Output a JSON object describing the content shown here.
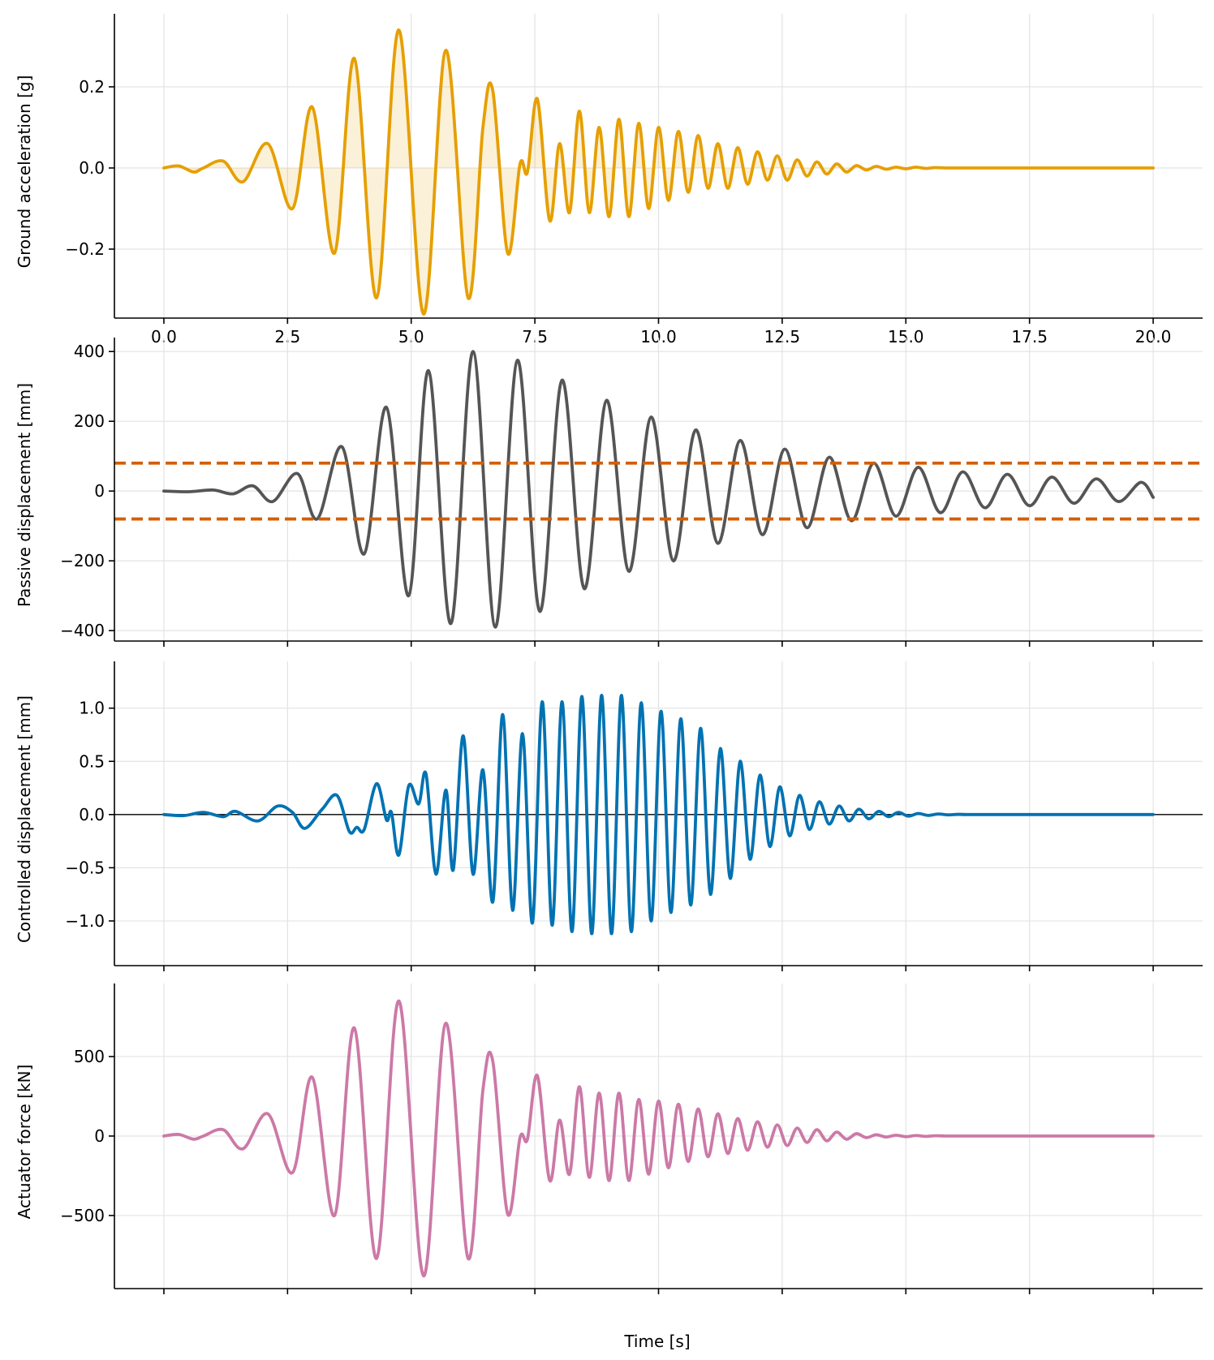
{
  "figure": {
    "xlabel": "Time [s]"
  },
  "chart_data": [
    {
      "type": "line",
      "ylabel": "Ground acceleration [g]",
      "xlim": [
        -1.0,
        21.0
      ],
      "ylim": [
        -0.37,
        0.38
      ],
      "x_ticks": [
        0.0,
        2.5,
        5.0,
        7.5,
        10.0,
        12.5,
        15.0,
        17.5,
        20.0
      ],
      "x_tick_labels": [
        "0.0",
        "2.5",
        "5.0",
        "7.5",
        "10.0",
        "12.5",
        "15.0",
        "17.5",
        "20.0"
      ],
      "y_ticks": [
        -0.2,
        0.0,
        0.2
      ],
      "y_tick_labels": [
        "−0.2",
        "0.0",
        "0.2"
      ],
      "grid": true,
      "fill_to_zero": true,
      "color": "#E69F00",
      "x": [
        0,
        0.3,
        0.6,
        0.8,
        1.2,
        1.6,
        2.1,
        2.6,
        3.0,
        3.45,
        3.85,
        4.3,
        4.75,
        5.25,
        5.7,
        6.15,
        6.45,
        6.65,
        6.95,
        7.2,
        7.35,
        7.55,
        7.8,
        8.0,
        8.2,
        8.4,
        8.6,
        8.8,
        9.0,
        9.2,
        9.4,
        9.6,
        9.8,
        10.0,
        10.2,
        10.4,
        10.6,
        10.8,
        11.0,
        11.2,
        11.4,
        11.6,
        11.8,
        12.0,
        12.2,
        12.4,
        12.6,
        12.8,
        13.0,
        13.2,
        13.4,
        13.6,
        13.8,
        14.0,
        14.2,
        14.4,
        14.6,
        14.8,
        15.0,
        15.2,
        15.4,
        15.6,
        15.8,
        16.0,
        16.2,
        16.4,
        20.0
      ],
      "y": [
        0,
        0.005,
        -0.01,
        0.0,
        0.017,
        -0.034,
        0.06,
        -0.1,
        0.15,
        -0.21,
        0.27,
        -0.32,
        0.34,
        -0.36,
        0.29,
        -0.32,
        0.1,
        0.19,
        -0.21,
        0.01,
        -0.01,
        0.17,
        -0.13,
        0.06,
        -0.11,
        0.14,
        -0.11,
        0.1,
        -0.12,
        0.12,
        -0.12,
        0.11,
        -0.1,
        0.1,
        -0.08,
        0.09,
        -0.06,
        0.08,
        -0.05,
        0.06,
        -0.05,
        0.05,
        -0.04,
        0.04,
        -0.03,
        0.03,
        -0.03,
        0.02,
        -0.02,
        0.015,
        -0.015,
        0.01,
        -0.01,
        0.006,
        -0.005,
        0.004,
        -0.003,
        0.002,
        -0.002,
        0.002,
        -0.001,
        0.001,
        0,
        0,
        0,
        0,
        0
      ]
    },
    {
      "type": "line",
      "ylabel": "Passive displacement [mm]",
      "xlim": [
        -1.0,
        21.0
      ],
      "ylim": [
        -430,
        440
      ],
      "x_ticks": [
        0.0,
        2.5,
        5.0,
        7.5,
        10.0,
        12.5,
        15.0,
        17.5,
        20.0
      ],
      "y_ticks": [
        -400,
        -200,
        0,
        200,
        400
      ],
      "y_tick_labels": [
        "−400",
        "−200",
        "0",
        "200",
        "400"
      ],
      "grid": true,
      "color": "#555555",
      "x": [
        0,
        0.5,
        1.0,
        1.4,
        1.8,
        2.2,
        2.7,
        3.1,
        3.6,
        4.05,
        4.5,
        4.95,
        5.35,
        5.8,
        6.25,
        6.7,
        7.15,
        7.6,
        8.05,
        8.5,
        8.95,
        9.4,
        9.85,
        10.3,
        10.75,
        11.2,
        11.65,
        12.1,
        12.55,
        13.0,
        13.45,
        13.9,
        14.35,
        14.8,
        15.25,
        15.7,
        16.15,
        16.6,
        17.05,
        17.5,
        17.95,
        18.4,
        18.85,
        19.3,
        19.75,
        20.0
      ],
      "y": [
        0,
        -2,
        3,
        -8,
        15,
        -30,
        50,
        -80,
        127,
        -180,
        240,
        -300,
        345,
        -380,
        400,
        -390,
        375,
        -345,
        318,
        -280,
        260,
        -230,
        212,
        -200,
        175,
        -150,
        145,
        -125,
        120,
        -105,
        97,
        -85,
        80,
        -72,
        68,
        -62,
        55,
        -48,
        48,
        -42,
        40,
        -35,
        35,
        -30,
        25,
        -18
      ]
    },
    {
      "type": "line",
      "ylabel": "Controlled displacement [mm]",
      "xlim": [
        -1.0,
        21.0
      ],
      "ylim": [
        -1.42,
        1.44
      ],
      "x_ticks": [
        0.0,
        2.5,
        5.0,
        7.5,
        10.0,
        12.5,
        15.0,
        17.5,
        20.0
      ],
      "y_ticks": [
        -1.0,
        -0.5,
        0.0,
        0.5,
        1.0
      ],
      "y_tick_labels": [
        "−1.0",
        "−0.5",
        "0.0",
        "0.5",
        "1.0"
      ],
      "grid": true,
      "zero_line": true,
      "color": "#0072B2",
      "x": [
        0,
        0.4,
        0.8,
        1.2,
        1.45,
        1.9,
        2.3,
        2.6,
        2.85,
        3.2,
        3.5,
        3.75,
        3.9,
        4.05,
        4.3,
        4.5,
        4.6,
        4.75,
        4.95,
        5.15,
        5.3,
        5.5,
        5.7,
        5.85,
        6.05,
        6.25,
        6.45,
        6.65,
        6.85,
        7.05,
        7.25,
        7.45,
        7.65,
        7.85,
        8.05,
        8.25,
        8.45,
        8.65,
        8.85,
        9.05,
        9.25,
        9.45,
        9.65,
        9.85,
        10.05,
        10.25,
        10.45,
        10.65,
        10.85,
        11.05,
        11.25,
        11.45,
        11.65,
        11.85,
        12.05,
        12.25,
        12.45,
        12.65,
        12.85,
        13.05,
        13.25,
        13.45,
        13.65,
        13.85,
        14.05,
        14.25,
        14.45,
        14.65,
        14.85,
        15.05,
        15.25,
        15.45,
        15.65,
        15.85,
        16.05,
        16.25,
        16.45,
        20.0
      ],
      "y": [
        0,
        -0.01,
        0.02,
        -0.02,
        0.03,
        -0.06,
        0.08,
        0.02,
        -0.13,
        0.05,
        0.18,
        -0.16,
        -0.12,
        -0.14,
        0.29,
        -0.05,
        0.02,
        -0.38,
        0.27,
        0.1,
        0.38,
        -0.56,
        0.23,
        -0.52,
        0.74,
        -0.56,
        0.42,
        -0.82,
        0.94,
        -0.9,
        0.76,
        -1.02,
        1.06,
        -1.04,
        1.06,
        -1.1,
        1.11,
        -1.12,
        1.12,
        -1.12,
        1.12,
        -1.1,
        1.05,
        -1.0,
        0.97,
        -0.92,
        0.9,
        -0.85,
        0.81,
        -0.75,
        0.62,
        -0.6,
        0.5,
        -0.42,
        0.37,
        -0.3,
        0.26,
        -0.2,
        0.18,
        -0.14,
        0.12,
        -0.09,
        0.08,
        -0.06,
        0.05,
        -0.04,
        0.03,
        -0.02,
        0.02,
        -0.015,
        0.01,
        -0.008,
        0.005,
        -0.003,
        0.002,
        0,
        0,
        0
      ]
    },
    {
      "type": "line",
      "ylabel": "Actuator force [kN]",
      "xlim": [
        -1.0,
        21.0
      ],
      "ylim": [
        -960,
        960
      ],
      "x_ticks": [
        0.0,
        2.5,
        5.0,
        7.5,
        10.0,
        12.5,
        15.0,
        17.5,
        20.0
      ],
      "y_ticks": [
        -500,
        0,
        500
      ],
      "y_tick_labels": [
        "−500",
        "0",
        "500"
      ],
      "grid": true,
      "color": "#CC79A7",
      "x": [
        0,
        0.3,
        0.6,
        0.8,
        1.2,
        1.6,
        2.1,
        2.6,
        3.0,
        3.45,
        3.85,
        4.3,
        4.75,
        5.25,
        5.7,
        6.15,
        6.45,
        6.65,
        6.95,
        7.2,
        7.35,
        7.55,
        7.8,
        8.0,
        8.2,
        8.4,
        8.6,
        8.8,
        9.0,
        9.2,
        9.4,
        9.6,
        9.8,
        10.0,
        10.2,
        10.4,
        10.6,
        10.8,
        11.0,
        11.2,
        11.4,
        11.6,
        11.8,
        12.0,
        12.2,
        12.4,
        12.6,
        12.8,
        13.0,
        13.2,
        13.4,
        13.6,
        13.8,
        14.0,
        14.2,
        14.4,
        14.6,
        14.8,
        15.0,
        15.2,
        15.4,
        15.6,
        15.8,
        16.0,
        16.2,
        16.4,
        20.0
      ],
      "y": [
        0,
        10,
        -20,
        0,
        40,
        -80,
        140,
        -230,
        370,
        -500,
        680,
        -770,
        850,
        -880,
        710,
        -770,
        290,
        470,
        -490,
        -10,
        -20,
        380,
        -280,
        100,
        -240,
        310,
        -260,
        270,
        -280,
        270,
        -280,
        230,
        -240,
        220,
        -200,
        200,
        -160,
        170,
        -130,
        140,
        -110,
        110,
        -90,
        90,
        -70,
        70,
        -60,
        50,
        -40,
        40,
        -30,
        25,
        -20,
        15,
        -10,
        8,
        -6,
        5,
        -4,
        3,
        -2,
        2,
        0,
        0,
        0,
        0,
        0
      ]
    }
  ]
}
